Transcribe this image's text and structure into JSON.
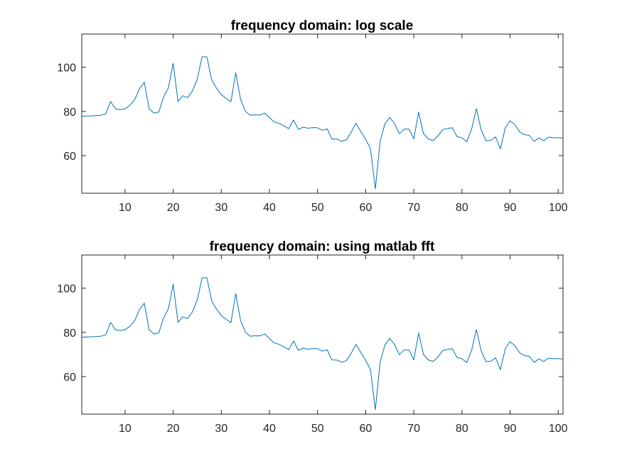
{
  "chart_data": [
    {
      "type": "line",
      "title": "frequency domain: log scale",
      "xlabel": "",
      "ylabel": "",
      "xlim": [
        1,
        101
      ],
      "ylim": [
        43,
        115
      ],
      "xticks": [
        10,
        20,
        30,
        40,
        50,
        60,
        70,
        80,
        90,
        100
      ],
      "yticks": [
        60,
        80,
        100
      ],
      "grid": false,
      "line_color": "#0072BD",
      "series": [
        {
          "x": [
            1,
            2,
            3,
            4,
            5,
            6,
            7,
            8,
            9,
            10,
            11,
            12,
            13,
            14,
            15,
            16,
            17,
            18,
            19,
            20,
            21,
            22,
            23,
            24,
            25,
            26,
            27,
            28,
            29,
            30,
            31,
            32,
            33,
            34,
            35,
            36,
            37,
            38,
            39,
            40,
            41,
            42,
            43,
            44,
            45,
            46,
            47,
            48,
            49,
            50,
            51,
            52,
            53,
            54,
            55,
            56,
            57,
            58,
            59,
            60,
            61,
            62,
            63,
            64,
            65,
            66,
            67,
            68,
            69,
            70,
            71,
            72,
            73,
            74,
            75,
            76,
            77,
            78,
            79,
            80,
            81,
            82,
            83,
            84,
            85,
            86,
            87,
            88,
            89,
            90,
            91,
            92,
            93,
            94,
            95,
            96,
            97,
            98,
            99,
            100,
            101
          ],
          "values": [
            77.8,
            77.9,
            78.0,
            78.1,
            78.3,
            78.9,
            84.5,
            81.2,
            80.8,
            81.2,
            82.8,
            85.3,
            90.3,
            93.2,
            81.2,
            79.3,
            79.7,
            86.5,
            90.7,
            101.8,
            84.5,
            87.1,
            86.2,
            89.3,
            94.6,
            104.7,
            104.7,
            94.3,
            90.5,
            87.6,
            85.9,
            84.4,
            97.5,
            85.5,
            80.1,
            78.3,
            78.5,
            78.4,
            79.3,
            77.2,
            75.2,
            74.6,
            73.5,
            72.2,
            76.1,
            71.9,
            72.9,
            72.4,
            72.7,
            72.6,
            71.5,
            72.1,
            67.5,
            67.5,
            66.5,
            67.2,
            70.6,
            74.6,
            70.8,
            67.4,
            63.1,
            45.0,
            66.4,
            74.4,
            77.3,
            74.5,
            69.9,
            72.0,
            72.0,
            67.6,
            79.7,
            70.0,
            67.6,
            66.8,
            68.9,
            71.8,
            72.3,
            72.6,
            68.6,
            68.1,
            66.3,
            71.9,
            81.3,
            71.6,
            66.8,
            66.9,
            68.5,
            63.1,
            72.6,
            75.8,
            74.0,
            70.7,
            69.5,
            69.2,
            66.4,
            68.0,
            66.8,
            68.4,
            68.1,
            68.1,
            68.0
          ]
        }
      ]
    },
    {
      "type": "line",
      "title": "frequency domain: using matlab fft",
      "xlabel": "",
      "ylabel": "",
      "xlim": [
        1,
        101
      ],
      "ylim": [
        43,
        115
      ],
      "xticks": [
        10,
        20,
        30,
        40,
        50,
        60,
        70,
        80,
        90,
        100
      ],
      "yticks": [
        60,
        80,
        100
      ],
      "grid": false,
      "line_color": "#0072BD",
      "series": [
        {
          "x": [
            1,
            2,
            3,
            4,
            5,
            6,
            7,
            8,
            9,
            10,
            11,
            12,
            13,
            14,
            15,
            16,
            17,
            18,
            19,
            20,
            21,
            22,
            23,
            24,
            25,
            26,
            27,
            28,
            29,
            30,
            31,
            32,
            33,
            34,
            35,
            36,
            37,
            38,
            39,
            40,
            41,
            42,
            43,
            44,
            45,
            46,
            47,
            48,
            49,
            50,
            51,
            52,
            53,
            54,
            55,
            56,
            57,
            58,
            59,
            60,
            61,
            62,
            63,
            64,
            65,
            66,
            67,
            68,
            69,
            70,
            71,
            72,
            73,
            74,
            75,
            76,
            77,
            78,
            79,
            80,
            81,
            82,
            83,
            84,
            85,
            86,
            87,
            88,
            89,
            90,
            91,
            92,
            93,
            94,
            95,
            96,
            97,
            98,
            99,
            100,
            101
          ],
          "values": [
            77.8,
            77.9,
            78.0,
            78.1,
            78.3,
            78.9,
            84.5,
            81.2,
            80.8,
            81.2,
            82.8,
            85.3,
            90.3,
            93.2,
            81.2,
            79.3,
            79.7,
            86.5,
            90.7,
            101.8,
            84.5,
            87.1,
            86.2,
            89.3,
            94.6,
            104.7,
            104.7,
            94.3,
            90.5,
            87.6,
            85.9,
            84.4,
            97.5,
            85.5,
            80.1,
            78.3,
            78.5,
            78.4,
            79.3,
            77.2,
            75.2,
            74.6,
            73.5,
            72.2,
            76.1,
            71.9,
            72.9,
            72.4,
            72.7,
            72.6,
            71.5,
            72.1,
            67.5,
            67.5,
            66.5,
            67.2,
            70.6,
            74.6,
            70.8,
            67.4,
            63.1,
            45.0,
            66.4,
            74.4,
            77.3,
            74.5,
            69.9,
            72.0,
            72.0,
            67.6,
            79.7,
            70.0,
            67.6,
            66.8,
            68.9,
            71.8,
            72.3,
            72.6,
            68.6,
            68.1,
            66.3,
            71.9,
            81.3,
            71.6,
            66.8,
            66.9,
            68.5,
            63.1,
            72.6,
            75.8,
            74.0,
            70.7,
            69.5,
            69.2,
            66.4,
            68.0,
            66.8,
            68.4,
            68.1,
            68.1,
            68.0
          ]
        }
      ]
    }
  ]
}
